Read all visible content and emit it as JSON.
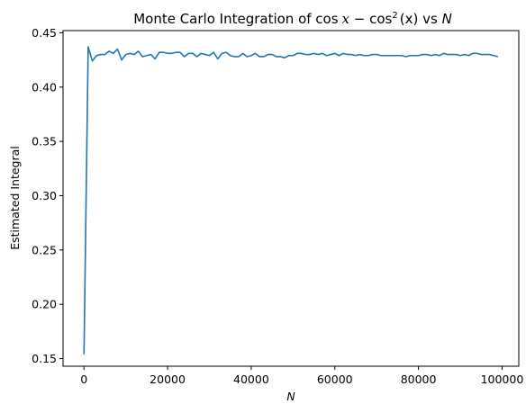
{
  "chart_data": {
    "type": "line",
    "title": "Monte Carlo Integration of cos x − cos²(x) vs N",
    "title_parts": {
      "prefix": "Monte Carlo Integration of cos",
      "x1": "x",
      "minus": " − cos",
      "sup": "2",
      "arg": "(x)",
      "vs": " vs ",
      "n": "N"
    },
    "xlabel": "N",
    "ylabel": "Estimated Integral",
    "xlim": [
      -5000,
      104000
    ],
    "ylim": [
      0.143,
      0.452
    ],
    "xticks": [
      0,
      20000,
      40000,
      60000,
      80000,
      100000
    ],
    "xtick_labels": [
      "0",
      "20000",
      "40000",
      "60000",
      "80000",
      "100000"
    ],
    "yticks": [
      0.15,
      0.2,
      0.25,
      0.3,
      0.35,
      0.4,
      0.45
    ],
    "ytick_labels": [
      "0.15",
      "0.20",
      "0.25",
      "0.30",
      "0.35",
      "0.40",
      "0.45"
    ],
    "grid": false,
    "series": [
      {
        "color": "#1f77b4",
        "x": [
          10,
          1010,
          2010,
          3010,
          4010,
          5010,
          6010,
          7010,
          8010,
          9010,
          10010,
          11010,
          12010,
          13010,
          14010,
          15010,
          16010,
          17010,
          18010,
          19010,
          20010,
          21010,
          22010,
          23010,
          24010,
          25010,
          26010,
          27010,
          28010,
          29010,
          30010,
          31010,
          32010,
          33010,
          34010,
          35010,
          36010,
          37010,
          38010,
          39010,
          40010,
          41010,
          42010,
          43010,
          44010,
          45010,
          46010,
          47010,
          48010,
          49010,
          50010,
          51010,
          52010,
          53010,
          54010,
          55010,
          56010,
          57010,
          58010,
          59010,
          60010,
          61010,
          62010,
          63010,
          64010,
          65010,
          66010,
          67010,
          68010,
          69010,
          70010,
          71010,
          72010,
          73010,
          74010,
          75010,
          76010,
          77010,
          78010,
          79010,
          80010,
          81010,
          82010,
          83010,
          84010,
          85010,
          86010,
          87010,
          88010,
          89010,
          90010,
          91010,
          92010,
          93010,
          94010,
          95010,
          96010,
          97010,
          98010,
          99010
        ],
        "y": [
          0.154,
          0.437,
          0.424,
          0.429,
          0.43,
          0.43,
          0.433,
          0.431,
          0.435,
          0.425,
          0.43,
          0.431,
          0.43,
          0.433,
          0.428,
          0.429,
          0.43,
          0.426,
          0.432,
          0.432,
          0.431,
          0.431,
          0.432,
          0.432,
          0.428,
          0.431,
          0.431,
          0.428,
          0.431,
          0.43,
          0.429,
          0.432,
          0.426,
          0.431,
          0.432,
          0.429,
          0.428,
          0.428,
          0.431,
          0.428,
          0.429,
          0.431,
          0.428,
          0.428,
          0.43,
          0.43,
          0.428,
          0.428,
          0.427,
          0.429,
          0.429,
          0.431,
          0.431,
          0.43,
          0.43,
          0.431,
          0.43,
          0.431,
          0.429,
          0.43,
          0.431,
          0.429,
          0.431,
          0.43,
          0.43,
          0.429,
          0.43,
          0.429,
          0.429,
          0.43,
          0.43,
          0.429,
          0.429,
          0.429,
          0.429,
          0.429,
          0.429,
          0.428,
          0.429,
          0.429,
          0.429,
          0.43,
          0.43,
          0.429,
          0.43,
          0.429,
          0.431,
          0.43,
          0.43,
          0.43,
          0.429,
          0.43,
          0.429,
          0.431,
          0.431,
          0.43,
          0.43,
          0.43,
          0.429,
          0.428
        ]
      }
    ]
  }
}
